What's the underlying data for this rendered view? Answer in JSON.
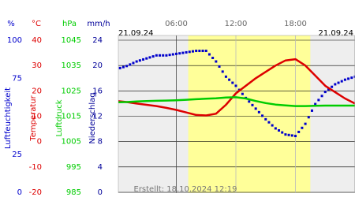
{
  "chart_data": {
    "type": "line",
    "date_left": "21.09.24",
    "date_right": "21.09.24",
    "footer": "Erstellt: 18.10.2024 12:19",
    "xlim": [
      0,
      24
    ],
    "xticks": [
      {
        "value": 6,
        "label": "06:00"
      },
      {
        "value": 12,
        "label": "12:00"
      },
      {
        "value": 18,
        "label": "18:00"
      }
    ],
    "daylight": [
      7.2,
      19.5
    ],
    "x": [
      0,
      1,
      2,
      3,
      4,
      5,
      6,
      7,
      8,
      9,
      10,
      11,
      12,
      13,
      14,
      15,
      16,
      17,
      18,
      19,
      20,
      21,
      22,
      23,
      24
    ],
    "axes": [
      {
        "unit": "%",
        "name": "Luftfeuchtigkeit",
        "color": "#0000cc",
        "ylim": [
          0,
          100
        ],
        "yticks": [
          100,
          75,
          25,
          0
        ]
      },
      {
        "unit": "°C",
        "name": "Temperatur",
        "color": "#dd0000",
        "ylim": [
          -20,
          40
        ],
        "yticks": [
          40,
          30,
          20,
          10,
          0,
          -10,
          -20
        ]
      },
      {
        "unit": "hPa",
        "name": "Luftdruck",
        "color": "#00cc00",
        "ylim": [
          985,
          1045
        ],
        "yticks": [
          1045,
          1035,
          1025,
          1015,
          1005,
          995,
          985
        ]
      },
      {
        "unit": "mm/h",
        "name": "Niederschlag",
        "color": "#000099",
        "ylim": [
          0,
          24
        ],
        "yticks": [
          24,
          20,
          16,
          12,
          8,
          4,
          0
        ]
      }
    ],
    "series": [
      {
        "name": "Luftfeuchtigkeit",
        "axis": 0,
        "color": "#0000cc",
        "style": "dots",
        "values": [
          81,
          83,
          86,
          88,
          90,
          90,
          91,
          92,
          93,
          93,
          86,
          76,
          70,
          62,
          55,
          48,
          42,
          38,
          37,
          45,
          58,
          66,
          71,
          74,
          76
        ]
      },
      {
        "name": "Temperatur",
        "axis": 1,
        "color": "#dd0000",
        "style": "line",
        "values": [
          16,
          15.6,
          15,
          14.5,
          14,
          13.3,
          12.5,
          11.5,
          10.5,
          10.3,
          11,
          14.5,
          19,
          22,
          25,
          27.5,
          30,
          32,
          32.5,
          30,
          26,
          22,
          19.5,
          17,
          15
        ]
      },
      {
        "name": "Luftdruck",
        "axis": 2,
        "color": "#00cc00",
        "style": "line",
        "values": [
          1020.5,
          1020.6,
          1020.8,
          1021,
          1021.1,
          1021.2,
          1021.3,
          1021.5,
          1021.7,
          1021.9,
          1022.1,
          1022.4,
          1022.5,
          1022,
          1021,
          1020.2,
          1019.6,
          1019.3,
          1019,
          1019,
          1019.1,
          1019.2,
          1019.2,
          1019.2,
          1019.2
        ]
      }
    ]
  }
}
